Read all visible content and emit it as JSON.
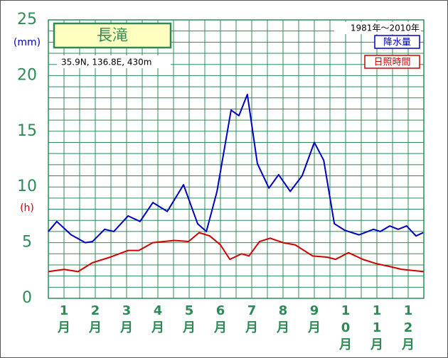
{
  "chart_data": {
    "type": "line",
    "title": "長滝",
    "subtitle": "35.9N, 136.8E, 430m",
    "period": "1981年～2010年",
    "y_unit_label": "(mm)",
    "y2_unit_label": "(h)",
    "categories": [
      "1月",
      "2月",
      "3月",
      "4月",
      "5月",
      "6月",
      "7月",
      "8月",
      "9月",
      "10月",
      "11月",
      "12月"
    ],
    "xlim": [
      0,
      12
    ],
    "ylim": [
      0,
      25
    ],
    "yticks": [
      0,
      5,
      10,
      15,
      20,
      25
    ],
    "grid": true,
    "legend": "upper right",
    "series": [
      {
        "name": "降水量",
        "color": "#0000c0",
        "x": [
          0,
          0.27,
          0.73,
          1.18,
          1.41,
          1.8,
          2.09,
          2.55,
          2.93,
          3.34,
          3.8,
          4.32,
          4.77,
          5.05,
          5.39,
          5.84,
          6.09,
          6.36,
          6.68,
          7.05,
          7.36,
          7.73,
          8.11,
          8.5,
          8.8,
          9.14,
          9.48,
          9.93,
          10.39,
          10.61,
          10.91,
          11.18,
          11.45,
          11.75,
          11.98
        ],
        "values": [
          6.0,
          6.9,
          5.7,
          5.0,
          5.1,
          6.2,
          6.0,
          7.4,
          6.9,
          8.6,
          7.8,
          10.2,
          6.7,
          6.0,
          9.6,
          16.9,
          16.4,
          18.3,
          12.1,
          9.9,
          11.1,
          9.6,
          11.0,
          14.0,
          12.4,
          6.7,
          6.1,
          5.7,
          6.2,
          6.0,
          6.5,
          6.2,
          6.5,
          5.6,
          5.9
        ]
      },
      {
        "name": "日照時間",
        "color": "#d00000",
        "x": [
          0,
          0.5,
          0.95,
          1.41,
          1.98,
          2.55,
          2.89,
          3.34,
          4.02,
          4.48,
          4.82,
          5.16,
          5.5,
          5.8,
          6.18,
          6.41,
          6.75,
          7.09,
          7.5,
          7.89,
          8.45,
          8.91,
          9.18,
          9.59,
          10.05,
          10.5,
          10.84,
          11.3,
          12.0
        ],
        "values": [
          2.4,
          2.6,
          2.4,
          3.2,
          3.7,
          4.3,
          4.3,
          5.0,
          5.2,
          5.1,
          5.9,
          5.6,
          4.8,
          3.5,
          4.0,
          3.8,
          5.1,
          5.4,
          5.0,
          4.8,
          3.8,
          3.7,
          3.5,
          4.1,
          3.5,
          3.1,
          2.9,
          2.6,
          2.4
        ]
      }
    ]
  }
}
